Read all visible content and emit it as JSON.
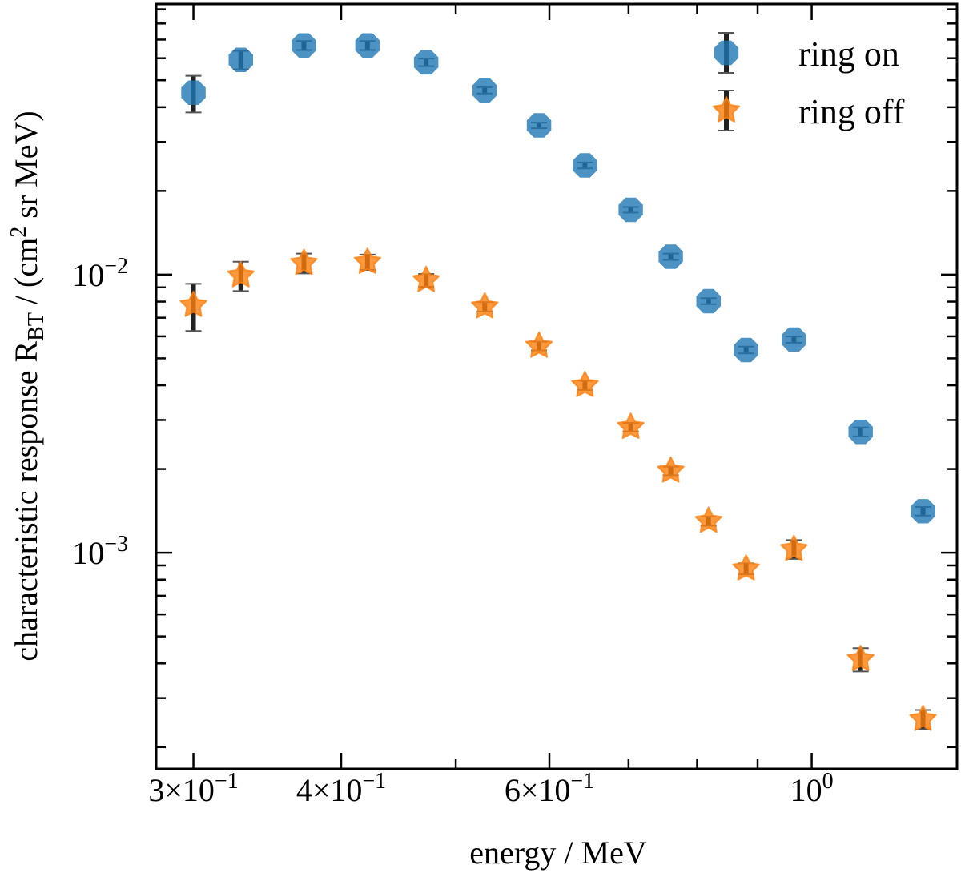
{
  "chart_data": {
    "type": "scatter",
    "xlabel": "energy / MeV",
    "ylabel": {
      "text": "characteristic response R",
      "subscript": "BT",
      "middle": " / (cm",
      "superscript": "2",
      "end": " sr MeV)"
    },
    "xscale": "log",
    "yscale": "log",
    "xlim": [
      0.279,
      1.327
    ],
    "ylim": [
      0.000167,
      0.094
    ],
    "grid": false,
    "legend_placement": "top-right",
    "x_ticks": [
      {
        "value": 0.3,
        "mantissa": "3×",
        "base": "10",
        "exp": "−1"
      },
      {
        "value": 0.4,
        "mantissa": "4×",
        "base": "10",
        "exp": "−1"
      },
      {
        "value": 0.6,
        "mantissa": "6×",
        "base": "10",
        "exp": "−1"
      },
      {
        "value": 1.0,
        "mantissa": "",
        "base": "10",
        "exp": "0"
      }
    ],
    "x_minor_ticks": [
      0.5,
      0.7,
      0.8,
      0.9
    ],
    "y_ticks": [
      {
        "value": 0.01,
        "base": "10",
        "exp": "−2"
      },
      {
        "value": 0.001,
        "base": "10",
        "exp": "−3"
      }
    ],
    "x": [
      0.3,
      0.329,
      0.372,
      0.421,
      0.472,
      0.529,
      0.588,
      0.643,
      0.703,
      0.76,
      0.818,
      0.88,
      0.966,
      1.1,
      1.242
    ],
    "series": [
      {
        "name": "ring on",
        "marker": "octagon",
        "color": "#1f77b4",
        "values": [
          0.0451,
          0.0592,
          0.0667,
          0.0667,
          0.058,
          0.046,
          0.0344,
          0.0247,
          0.0171,
          0.0116,
          0.00803,
          0.00536,
          0.00584,
          0.00272,
          0.00141
        ],
        "yerr": [
          0.0068,
          0.0045,
          0.0025,
          0.0025,
          0.0018,
          0.0012,
          0.0008,
          0.0006,
          0.0004,
          0.0003,
          0.0002,
          0.00015,
          0.00015,
          0.0001,
          5e-05
        ]
      },
      {
        "name": "ring off",
        "marker": "star",
        "color": "#ff7f0e",
        "values": [
          0.00777,
          0.00993,
          0.011,
          0.0111,
          0.00955,
          0.00767,
          0.00554,
          0.004,
          0.00283,
          0.00197,
          0.0013,
          0.000876,
          0.00103,
          0.000414,
          0.000252
        ],
        "yerr": [
          0.0015,
          0.0012,
          0.0009,
          0.0007,
          0.0005,
          0.0003,
          0.0002,
          0.00015,
          0.0001,
          7e-05,
          5e-05,
          4e-05,
          8e-05,
          4e-05,
          2e-05
        ]
      }
    ],
    "errorbar_color": "#222222"
  }
}
